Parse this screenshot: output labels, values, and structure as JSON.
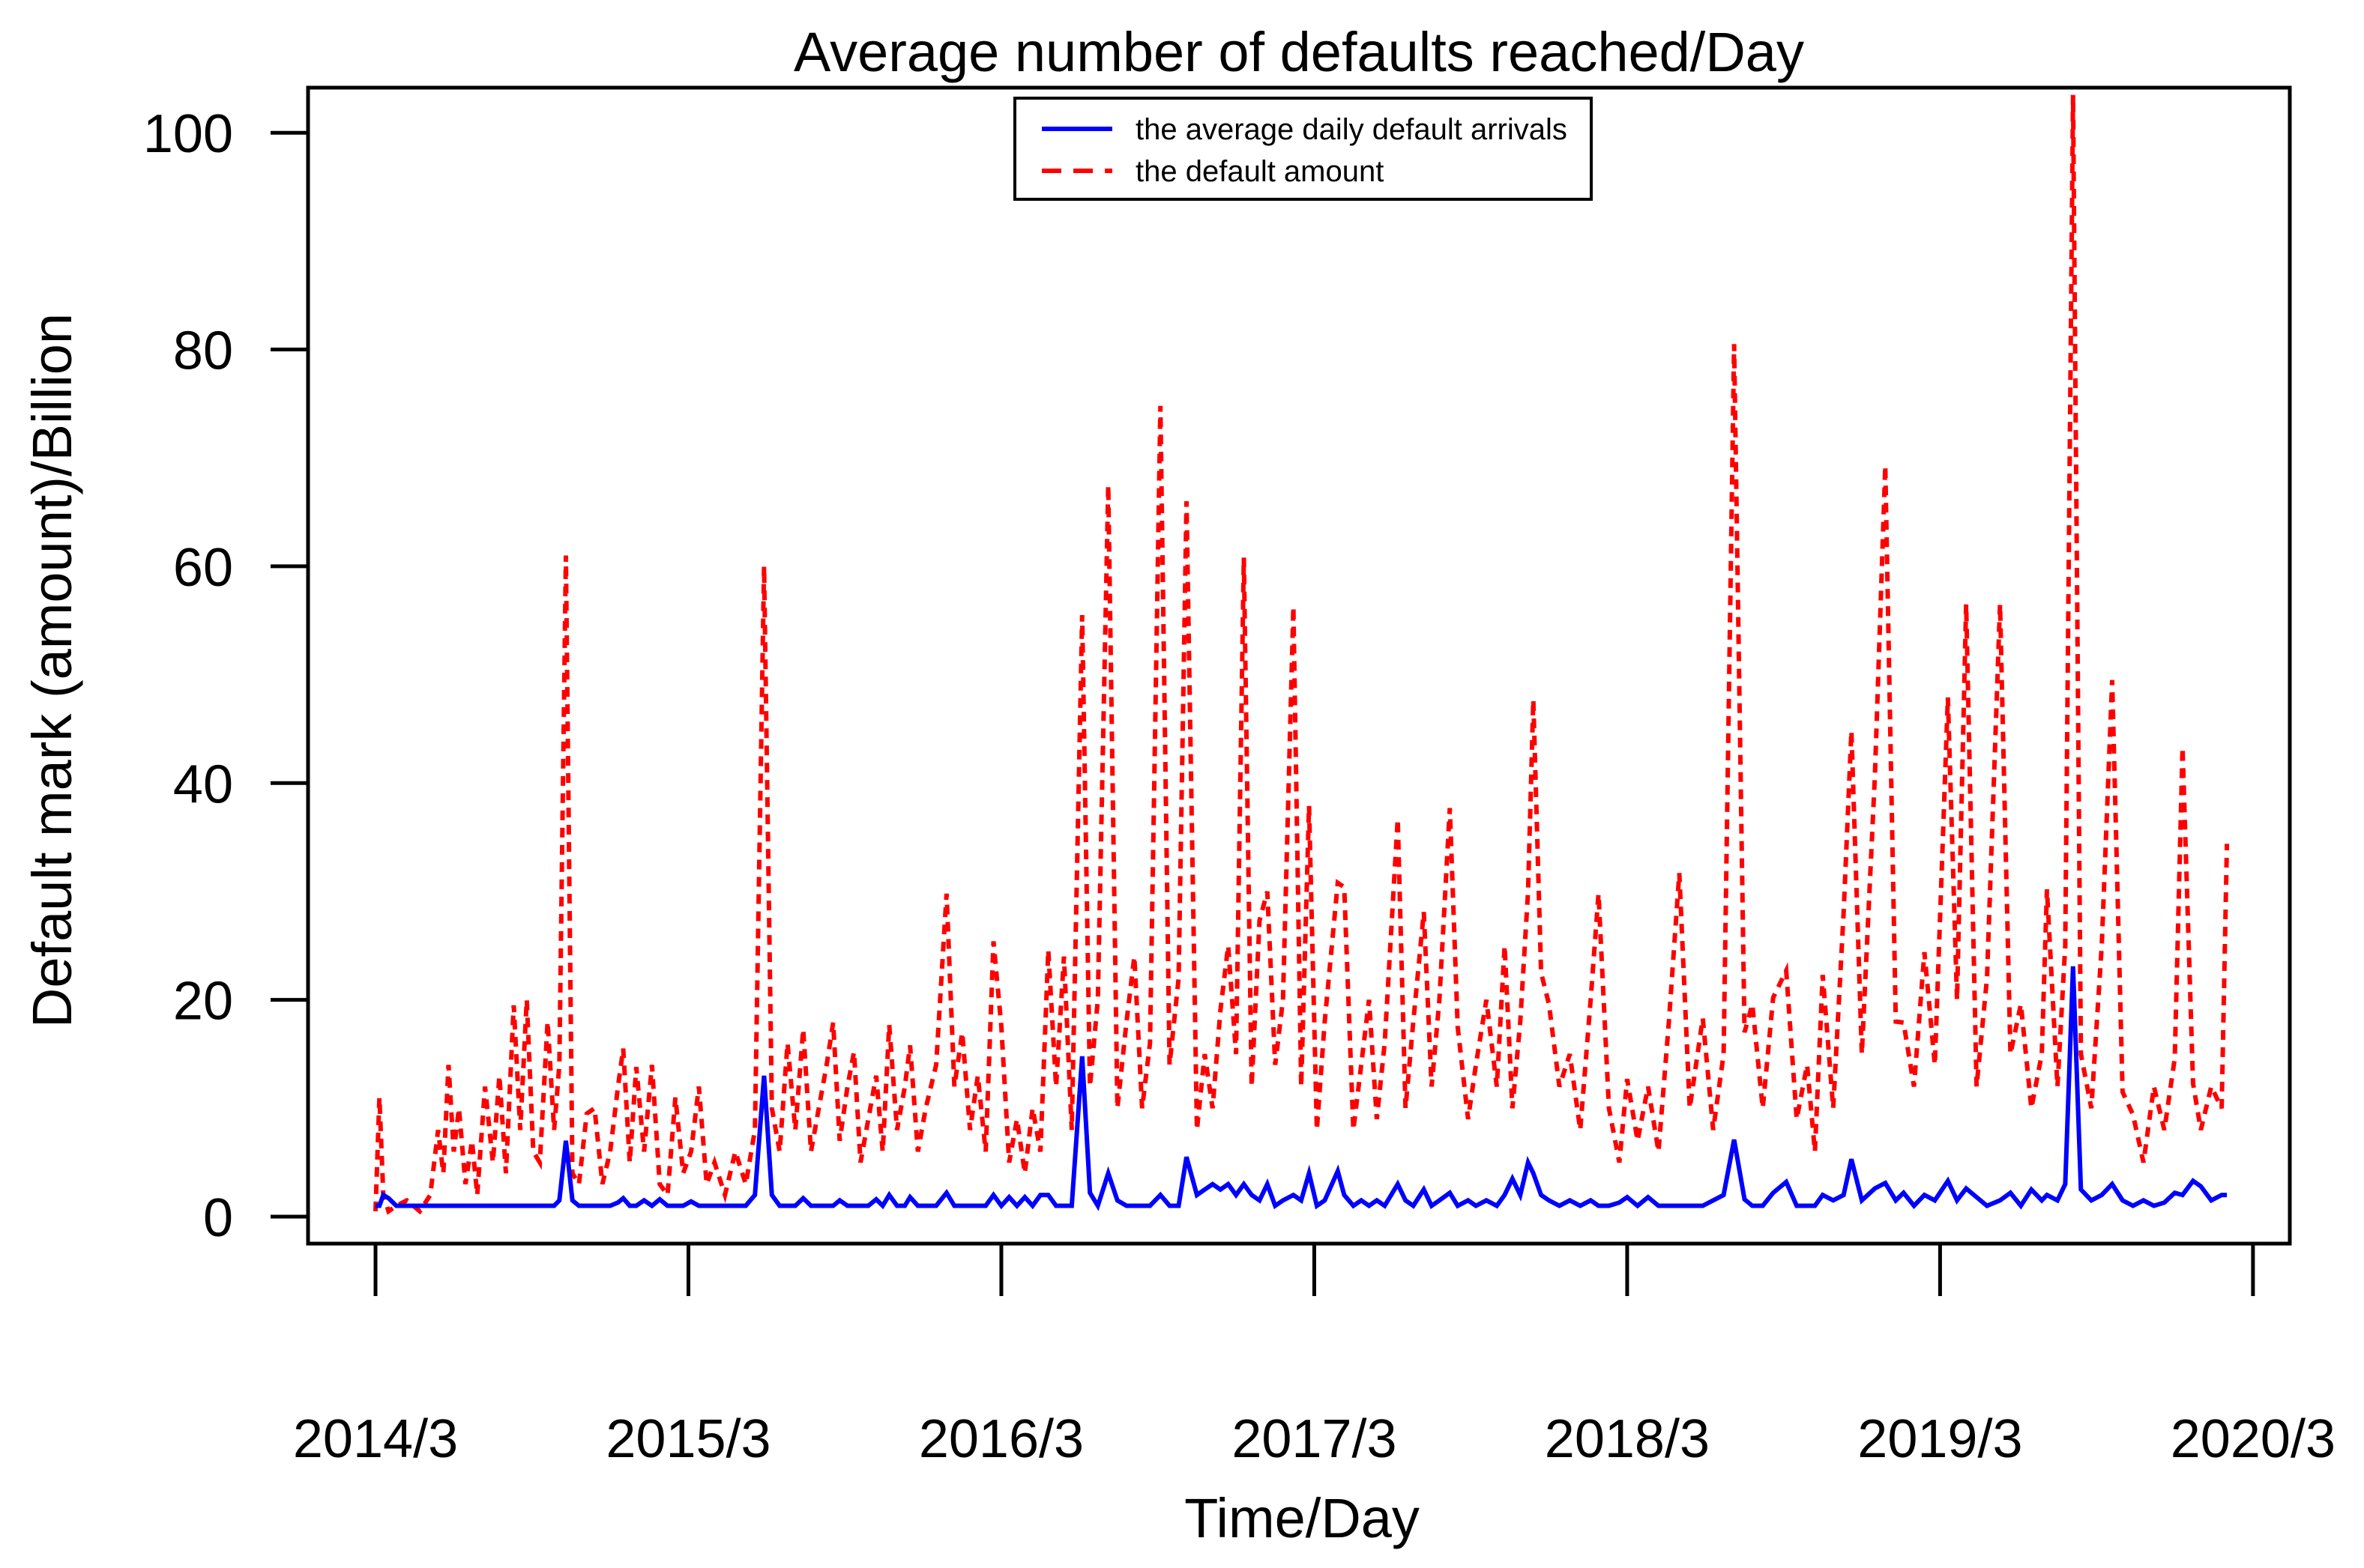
{
  "title": "Average number of defaults reached/Day",
  "axes": {
    "xlabel": "Time/Day",
    "ylabel": "Default mark (amount)/Billion",
    "y_ticks": [
      "0",
      "20",
      "40",
      "60",
      "80",
      "100"
    ],
    "x_ticks": [
      {
        "label": "2014/3",
        "month": 0
      },
      {
        "label": "2015/3",
        "month": 12
      },
      {
        "label": "2016/3",
        "month": 24
      },
      {
        "label": "2017/3",
        "month": 36
      },
      {
        "label": "2018/3",
        "month": 48
      },
      {
        "label": "2019/3",
        "month": 60
      },
      {
        "label": "2020/3",
        "month": 72
      }
    ]
  },
  "legend": {
    "entries": [
      {
        "label": "the average daily default arrivals",
        "color": "#0000ff",
        "line_style": "solid"
      },
      {
        "label": "the default amount",
        "color": "#ff0000",
        "line_style": "dashed"
      }
    ]
  },
  "chart_data": {
    "type": "line",
    "title": "Average number of defaults reached/Day",
    "xlabel": "Time/Day",
    "ylabel": "Default mark (amount)/Billion",
    "ylim": [
      0,
      104
    ],
    "grid": false,
    "legend_position": "top-center",
    "x_axis": {
      "unit": "months since 2014/3",
      "tick_months": [
        0,
        12,
        24,
        36,
        48,
        60,
        72
      ],
      "tick_labels": [
        "2014/3",
        "2015/3",
        "2016/3",
        "2017/3",
        "2018/3",
        "2019/3",
        "2020/3"
      ]
    },
    "columns": [
      "month_index",
      "avg_daily_default_arrivals",
      "default_amount"
    ],
    "series": [
      {
        "name": "the average daily default arrivals",
        "color": "#0000ff",
        "line_style": "solid",
        "column": 1
      },
      {
        "name": "the default amount",
        "color": "#ff0000",
        "line_style": "dashed",
        "column": 2
      }
    ],
    "points": [
      [
        0,
        1,
        0.5
      ],
      [
        0.15,
        1,
        11
      ],
      [
        0.3,
        2,
        2
      ],
      [
        0.5,
        1.7,
        0.5
      ],
      [
        0.8,
        1,
        1
      ],
      [
        1.2,
        1,
        1.5
      ],
      [
        1.7,
        1,
        0.5
      ],
      [
        2.1,
        1,
        2
      ],
      [
        2.4,
        1,
        8
      ],
      [
        2.6,
        1,
        4
      ],
      [
        2.8,
        1,
        14
      ],
      [
        3,
        1,
        6
      ],
      [
        3.2,
        1,
        10
      ],
      [
        3.45,
        1,
        3
      ],
      [
        3.7,
        1,
        7
      ],
      [
        3.9,
        1,
        2
      ],
      [
        4.2,
        1,
        12
      ],
      [
        4.5,
        1,
        5
      ],
      [
        4.75,
        1,
        13
      ],
      [
        5,
        1,
        4
      ],
      [
        5.3,
        1,
        19.5
      ],
      [
        5.55,
        1,
        8
      ],
      [
        5.8,
        1,
        20
      ],
      [
        6.05,
        1,
        6
      ],
      [
        6.3,
        1,
        5
      ],
      [
        6.6,
        1,
        18
      ],
      [
        6.85,
        1,
        8
      ],
      [
        7.05,
        1.5,
        14
      ],
      [
        7.3,
        7,
        61
      ],
      [
        7.55,
        1.5,
        4
      ],
      [
        7.8,
        1,
        3
      ],
      [
        8.1,
        1,
        9.5
      ],
      [
        8.4,
        1,
        10
      ],
      [
        8.7,
        1,
        3
      ],
      [
        9,
        1,
        6
      ],
      [
        9.3,
        1.3,
        12
      ],
      [
        9.5,
        1.7,
        15.5
      ],
      [
        9.75,
        1,
        5
      ],
      [
        10,
        1,
        13.8
      ],
      [
        10.3,
        1.5,
        6
      ],
      [
        10.6,
        1,
        14
      ],
      [
        10.9,
        1.6,
        3
      ],
      [
        11.2,
        1,
        2
      ],
      [
        11.5,
        1,
        11
      ],
      [
        11.8,
        1,
        4
      ],
      [
        12.1,
        1.4,
        6
      ],
      [
        12.4,
        1,
        12
      ],
      [
        12.7,
        1,
        3
      ],
      [
        13,
        1,
        5
      ],
      [
        13.4,
        1,
        2
      ],
      [
        13.8,
        1,
        6
      ],
      [
        14.2,
        1,
        3
      ],
      [
        14.55,
        2,
        8
      ],
      [
        14.9,
        13,
        60
      ],
      [
        15.2,
        2,
        10
      ],
      [
        15.5,
        1,
        6
      ],
      [
        15.8,
        1,
        16
      ],
      [
        16.1,
        1,
        8
      ],
      [
        16.4,
        1.7,
        17.3
      ],
      [
        16.7,
        1,
        6
      ],
      [
        17,
        1,
        10
      ],
      [
        17.3,
        1,
        14
      ],
      [
        17.55,
        1,
        17.9
      ],
      [
        17.8,
        1.5,
        7
      ],
      [
        18.1,
        1,
        12
      ],
      [
        18.35,
        1,
        15.2
      ],
      [
        18.6,
        1,
        5
      ],
      [
        18.9,
        1,
        9
      ],
      [
        19.2,
        1.6,
        13
      ],
      [
        19.45,
        1,
        6
      ],
      [
        19.7,
        2,
        17.7
      ],
      [
        20,
        1,
        8
      ],
      [
        20.3,
        1,
        12
      ],
      [
        20.5,
        1.8,
        15.8
      ],
      [
        20.8,
        1,
        6
      ],
      [
        21.1,
        1,
        10
      ],
      [
        21.5,
        1,
        14
      ],
      [
        21.9,
        2.2,
        29.8
      ],
      [
        22.2,
        1,
        12
      ],
      [
        22.5,
        1,
        17
      ],
      [
        22.8,
        1,
        8
      ],
      [
        23.1,
        1,
        13
      ],
      [
        23.4,
        1,
        6
      ],
      [
        23.7,
        2,
        25.4
      ],
      [
        24,
        1,
        17.5
      ],
      [
        24.3,
        1.8,
        5
      ],
      [
        24.6,
        1,
        9
      ],
      [
        24.9,
        1.8,
        4
      ],
      [
        25.2,
        1,
        10
      ],
      [
        25.5,
        2,
        6
      ],
      [
        25.8,
        2,
        24.6
      ],
      [
        26.1,
        1,
        12
      ],
      [
        26.4,
        1,
        24
      ],
      [
        26.7,
        1,
        8
      ],
      [
        27.1,
        14.8,
        55.5
      ],
      [
        27.4,
        2.2,
        12
      ],
      [
        27.7,
        1,
        20
      ],
      [
        28.1,
        4,
        67.5
      ],
      [
        28.45,
        1.5,
        10
      ],
      [
        28.8,
        1,
        18
      ],
      [
        29.1,
        1,
        24
      ],
      [
        29.4,
        1,
        10
      ],
      [
        29.7,
        1,
        16
      ],
      [
        30.1,
        2,
        74.8
      ],
      [
        30.45,
        1,
        14
      ],
      [
        30.8,
        1,
        22
      ],
      [
        31.1,
        5.5,
        66
      ],
      [
        31.5,
        2,
        8
      ],
      [
        31.8,
        2.5,
        15
      ],
      [
        32.1,
        3,
        10
      ],
      [
        32.4,
        2.5,
        19
      ],
      [
        32.7,
        3,
        25
      ],
      [
        33,
        2,
        15
      ],
      [
        33.3,
        3,
        60.8
      ],
      [
        33.6,
        2,
        12
      ],
      [
        33.9,
        1.5,
        27.3
      ],
      [
        34.2,
        3,
        30
      ],
      [
        34.5,
        1,
        14
      ],
      [
        34.8,
        1.5,
        20
      ],
      [
        35.2,
        2,
        56.3
      ],
      [
        35.5,
        1.5,
        12
      ],
      [
        35.8,
        4,
        37.9
      ],
      [
        36.1,
        1,
        8
      ],
      [
        36.4,
        1.5,
        18
      ],
      [
        36.9,
        4.2,
        30.8
      ],
      [
        37.15,
        2,
        30.4
      ],
      [
        37.5,
        1,
        8
      ],
      [
        37.8,
        1.5,
        14
      ],
      [
        38.1,
        1,
        20
      ],
      [
        38.4,
        1.5,
        9
      ],
      [
        38.7,
        1,
        16
      ],
      [
        39.2,
        3,
        36.7
      ],
      [
        39.5,
        1.5,
        10
      ],
      [
        39.8,
        1,
        18
      ],
      [
        40.2,
        2.5,
        28.1
      ],
      [
        40.5,
        1,
        12
      ],
      [
        40.8,
        1.5,
        20
      ],
      [
        41.2,
        2.2,
        37.7
      ],
      [
        41.5,
        1,
        17.5
      ],
      [
        41.9,
        1.5,
        9
      ],
      [
        42.2,
        1,
        14
      ],
      [
        42.6,
        1.5,
        20
      ],
      [
        43,
        1,
        12
      ],
      [
        43.3,
        2,
        25
      ],
      [
        43.6,
        3.5,
        10
      ],
      [
        43.9,
        2,
        18
      ],
      [
        44.2,
        5,
        30
      ],
      [
        44.4,
        4,
        47.7
      ],
      [
        44.7,
        2,
        22.5
      ],
      [
        45,
        1.5,
        19.6
      ],
      [
        45.4,
        1,
        12
      ],
      [
        45.8,
        1.5,
        15
      ],
      [
        46.2,
        1,
        8
      ],
      [
        46.6,
        1.5,
        20
      ],
      [
        46.9,
        1,
        29.8
      ],
      [
        47.3,
        1,
        10
      ],
      [
        47.7,
        1.3,
        5
      ],
      [
        48,
        1.8,
        12.7
      ],
      [
        48.4,
        1,
        7
      ],
      [
        48.8,
        1.8,
        12
      ],
      [
        49.2,
        1,
        6
      ],
      [
        49.6,
        1,
        18
      ],
      [
        50,
        1,
        31.7
      ],
      [
        50.4,
        1,
        10
      ],
      [
        50.9,
        1,
        18.3
      ],
      [
        51.3,
        1.5,
        8
      ],
      [
        51.7,
        2,
        15
      ],
      [
        52.1,
        7.1,
        80.5
      ],
      [
        52.5,
        1.6,
        17
      ],
      [
        52.8,
        1,
        19.6
      ],
      [
        53.2,
        1,
        10
      ],
      [
        53.6,
        2.2,
        20.2
      ],
      [
        54.1,
        3.2,
        22.7
      ],
      [
        54.5,
        1,
        9
      ],
      [
        54.9,
        1,
        14
      ],
      [
        55.2,
        1,
        6
      ],
      [
        55.5,
        2,
        22.3
      ],
      [
        55.9,
        1.5,
        10
      ],
      [
        56.3,
        2,
        28
      ],
      [
        56.6,
        5.3,
        44.8
      ],
      [
        57,
        1.5,
        15
      ],
      [
        57.5,
        2.6,
        40.6
      ],
      [
        57.9,
        3.1,
        69.3
      ],
      [
        58.3,
        1.5,
        18
      ],
      [
        58.6,
        2.2,
        17.9
      ],
      [
        59,
        1,
        12
      ],
      [
        59.4,
        2,
        24.4
      ],
      [
        59.8,
        1.5,
        14
      ],
      [
        60.3,
        3.3,
        47.9
      ],
      [
        60.65,
        1.5,
        20
      ],
      [
        61,
        2.6,
        56.5
      ],
      [
        61.4,
        1.8,
        12
      ],
      [
        61.8,
        1,
        22
      ],
      [
        62.3,
        1.5,
        56.5
      ],
      [
        62.7,
        2.2,
        15
      ],
      [
        63.1,
        1,
        19.6
      ],
      [
        63.5,
        2.5,
        10
      ],
      [
        63.9,
        1.5,
        15
      ],
      [
        64.1,
        2,
        30.2
      ],
      [
        64.5,
        1.5,
        12
      ],
      [
        64.8,
        3,
        25
      ],
      [
        65.1,
        23.1,
        103.5
      ],
      [
        65.4,
        2.5,
        15
      ],
      [
        65.8,
        1.5,
        10
      ],
      [
        66.2,
        2,
        25
      ],
      [
        66.6,
        3,
        49.5
      ],
      [
        67,
        1.5,
        11.5
      ],
      [
        67.4,
        1,
        9.4
      ],
      [
        67.8,
        1.5,
        5
      ],
      [
        68.2,
        1,
        12
      ],
      [
        68.6,
        1.3,
        8
      ],
      [
        69,
        2.2,
        14.6
      ],
      [
        69.3,
        2,
        43.3
      ],
      [
        69.7,
        3.3,
        12.3
      ],
      [
        70,
        2.8,
        8
      ],
      [
        70.4,
        1.5,
        12
      ],
      [
        70.8,
        2,
        10
      ],
      [
        71,
        2,
        34.4
      ]
    ]
  }
}
